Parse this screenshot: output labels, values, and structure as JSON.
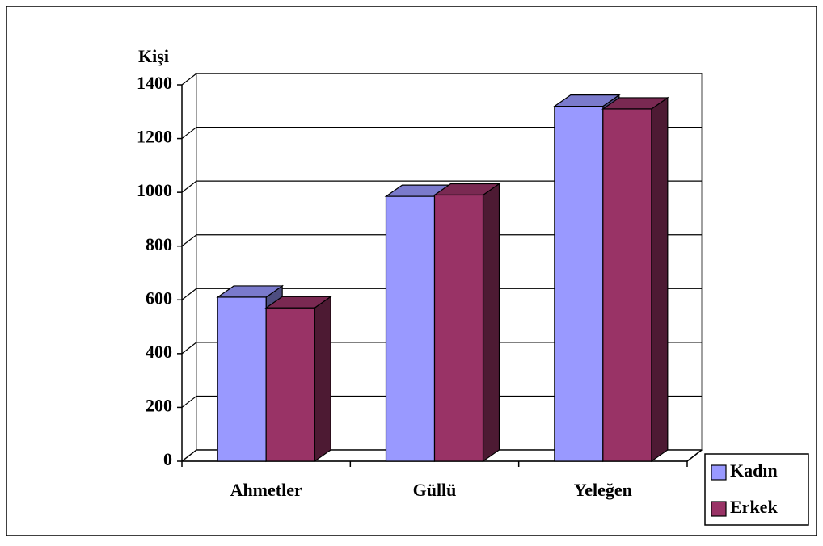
{
  "chart_data": {
    "type": "bar3d",
    "y_label": "Kişi",
    "categories": [
      "Ahmetler",
      "Güllü",
      "Yeleğen"
    ],
    "series": [
      {
        "name": "Kadın",
        "color": "#9999ff",
        "values": [
          610,
          985,
          1320
        ]
      },
      {
        "name": "Erkek",
        "color": "#993366",
        "values": [
          570,
          990,
          1310
        ]
      }
    ],
    "ylim": [
      0,
      1400
    ],
    "yticks": [
      0,
      200,
      400,
      600,
      800,
      1000,
      1200,
      1400
    ],
    "grid": true,
    "legend": "bottom-right"
  }
}
